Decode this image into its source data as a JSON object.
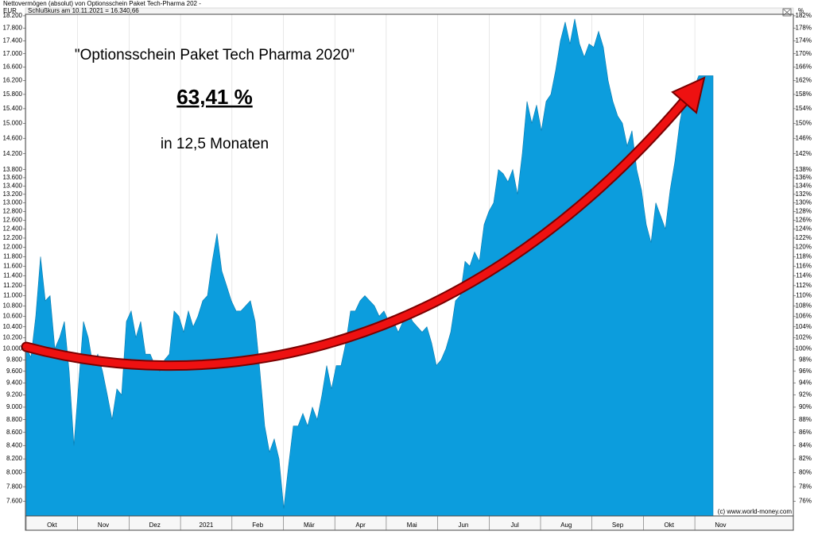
{
  "header": {
    "title": "Nettovermögen (absolut) von Optionsschein Paket Tech-Pharma 202 -",
    "left_unit": "EUR",
    "subtitle": "Schlußkurs am 10.11.2021 = 16.340,66",
    "right_unit": "%"
  },
  "chart_data": {
    "type": "area",
    "annotations": [
      "\"Optionsschein Paket Tech Pharma 2020\"",
      "63,41 %",
      "in 12,5 Monaten"
    ],
    "credit": "(c) www.world-money.com",
    "months": [
      "Okt",
      "Nov",
      "Dez",
      "2021",
      "Feb",
      "Mär",
      "Apr",
      "Mai",
      "Jun",
      "Jul",
      "Aug",
      "Sep",
      "Okt",
      "Nov"
    ],
    "log_scale": true,
    "series": [
      {
        "color": "#0c9ddd",
        "values": [
          10000,
          9850,
          10600,
          11800,
          10900,
          11000,
          10000,
          10200,
          10500,
          9600,
          8400,
          9400,
          10500,
          10200,
          9700,
          9900,
          9600,
          9200,
          8800,
          9300,
          9200,
          10500,
          10700,
          10200,
          10500,
          9900,
          9900,
          9700,
          9600,
          9800,
          9900,
          10700,
          10600,
          10300,
          10700,
          10400,
          10600,
          10900,
          11000,
          11700,
          12300,
          11500,
          11200,
          10900,
          10700,
          10700,
          10800,
          10900,
          10500,
          9600,
          8700,
          8300,
          8500,
          8200,
          7500,
          8100,
          8700,
          8700,
          8900,
          8700,
          9000,
          8800,
          9200,
          9700,
          9300,
          9700,
          9700,
          10100,
          10700,
          10700,
          10900,
          11000,
          10900,
          10800,
          10600,
          10700,
          10500,
          10500,
          10300,
          10500,
          10700,
          10500,
          10400,
          10300,
          10400,
          10100,
          9700,
          9800,
          10000,
          10300,
          10900,
          11000,
          11700,
          11600,
          11900,
          11700,
          12500,
          12800,
          13000,
          13800,
          13700,
          13500,
          13800,
          13200,
          14200,
          15600,
          15000,
          15500,
          14800,
          15600,
          15800,
          16500,
          17400,
          18000,
          17300,
          18100,
          17300,
          16900,
          17300,
          17200,
          17700,
          17200,
          16200,
          15600,
          15200,
          15000,
          14400,
          14800,
          13800,
          13300,
          12500,
          12100,
          13000,
          12700,
          12400,
          13300,
          14000,
          15000,
          15700,
          16000,
          16000,
          16340,
          16340,
          16340,
          16340
        ]
      }
    ],
    "ylim": [
      7400,
      18250
    ],
    "yticks": [
      {
        "value": 7600,
        "label": "7.600"
      },
      {
        "value": 7800,
        "label": "7.800"
      },
      {
        "value": 8000,
        "label": "8.000"
      },
      {
        "value": 8200,
        "label": "8.200"
      },
      {
        "value": 8400,
        "label": "8.400"
      },
      {
        "value": 8600,
        "label": "8.600"
      },
      {
        "value": 8800,
        "label": "8.800"
      },
      {
        "value": 9000,
        "label": "9.000"
      },
      {
        "value": 9200,
        "label": "9.200"
      },
      {
        "value": 9400,
        "label": "9.400"
      },
      {
        "value": 9600,
        "label": "9.600"
      },
      {
        "value": 9800,
        "label": "9.800"
      },
      {
        "value": 10000,
        "label": "10.000"
      },
      {
        "value": 10200,
        "label": "10.200"
      },
      {
        "value": 10400,
        "label": "10.400"
      },
      {
        "value": 10600,
        "label": "10.600"
      },
      {
        "value": 10800,
        "label": "10.800"
      },
      {
        "value": 11000,
        "label": "11.000"
      },
      {
        "value": 11200,
        "label": "11.200"
      },
      {
        "value": 11400,
        "label": "11.400"
      },
      {
        "value": 11600,
        "label": "11.600"
      },
      {
        "value": 11800,
        "label": "11.800"
      },
      {
        "value": 12000,
        "label": "12.000"
      },
      {
        "value": 12200,
        "label": "12.200"
      },
      {
        "value": 12400,
        "label": "12.400"
      },
      {
        "value": 12600,
        "label": "12.600"
      },
      {
        "value": 12800,
        "label": "12.800"
      },
      {
        "value": 13000,
        "label": "13.000"
      },
      {
        "value": 13200,
        "label": "13.200"
      },
      {
        "value": 13400,
        "label": "13.400"
      },
      {
        "value": 13600,
        "label": "13.600"
      },
      {
        "value": 13800,
        "label": "13.800"
      },
      {
        "value": 14200,
        "label": "14.200"
      },
      {
        "value": 14600,
        "label": "14.600"
      },
      {
        "value": 15000,
        "label": "15.000"
      },
      {
        "value": 15400,
        "label": "15.400"
      },
      {
        "value": 15800,
        "label": "15.800"
      },
      {
        "value": 16200,
        "label": "16.200"
      },
      {
        "value": 16600,
        "label": "16.600"
      },
      {
        "value": 17000,
        "label": "17.000"
      },
      {
        "value": 17400,
        "label": "17.400"
      },
      {
        "value": 17800,
        "label": "17.800"
      },
      {
        "value": 18200,
        "label": "18.200"
      }
    ],
    "y2lim": [
      74,
      182.5
    ],
    "y2ticks": [
      {
        "value": 76,
        "label": "76%"
      },
      {
        "value": 78,
        "label": "78%"
      },
      {
        "value": 80,
        "label": "80%"
      },
      {
        "value": 82,
        "label": "82%"
      },
      {
        "value": 84,
        "label": "84%"
      },
      {
        "value": 86,
        "label": "86%"
      },
      {
        "value": 88,
        "label": "88%"
      },
      {
        "value": 90,
        "label": "90%"
      },
      {
        "value": 92,
        "label": "92%"
      },
      {
        "value": 94,
        "label": "94%"
      },
      {
        "value": 96,
        "label": "96%"
      },
      {
        "value": 98,
        "label": "98%"
      },
      {
        "value": 100,
        "label": "100%"
      },
      {
        "value": 102,
        "label": "102%"
      },
      {
        "value": 104,
        "label": "104%"
      },
      {
        "value": 106,
        "label": "106%"
      },
      {
        "value": 108,
        "label": "108%"
      },
      {
        "value": 110,
        "label": "110%"
      },
      {
        "value": 112,
        "label": "112%"
      },
      {
        "value": 114,
        "label": "114%"
      },
      {
        "value": 116,
        "label": "116%"
      },
      {
        "value": 118,
        "label": "118%"
      },
      {
        "value": 120,
        "label": "120%"
      },
      {
        "value": 122,
        "label": "122%"
      },
      {
        "value": 124,
        "label": "124%"
      },
      {
        "value": 126,
        "label": "126%"
      },
      {
        "value": 128,
        "label": "128%"
      },
      {
        "value": 130,
        "label": "130%"
      },
      {
        "value": 132,
        "label": "132%"
      },
      {
        "value": 134,
        "label": "134%"
      },
      {
        "value": 136,
        "label": "136%"
      },
      {
        "value": 138,
        "label": "138%"
      },
      {
        "value": 142,
        "label": "142%"
      },
      {
        "value": 146,
        "label": "146%"
      },
      {
        "value": 150,
        "label": "150%"
      },
      {
        "value": 154,
        "label": "154%"
      },
      {
        "value": 158,
        "label": "158%"
      },
      {
        "value": 162,
        "label": "162%"
      },
      {
        "value": 166,
        "label": "166%"
      },
      {
        "value": 170,
        "label": "170%"
      },
      {
        "value": 174,
        "label": "174%"
      },
      {
        "value": 178,
        "label": "178%"
      },
      {
        "value": 182,
        "label": "182%"
      }
    ]
  }
}
